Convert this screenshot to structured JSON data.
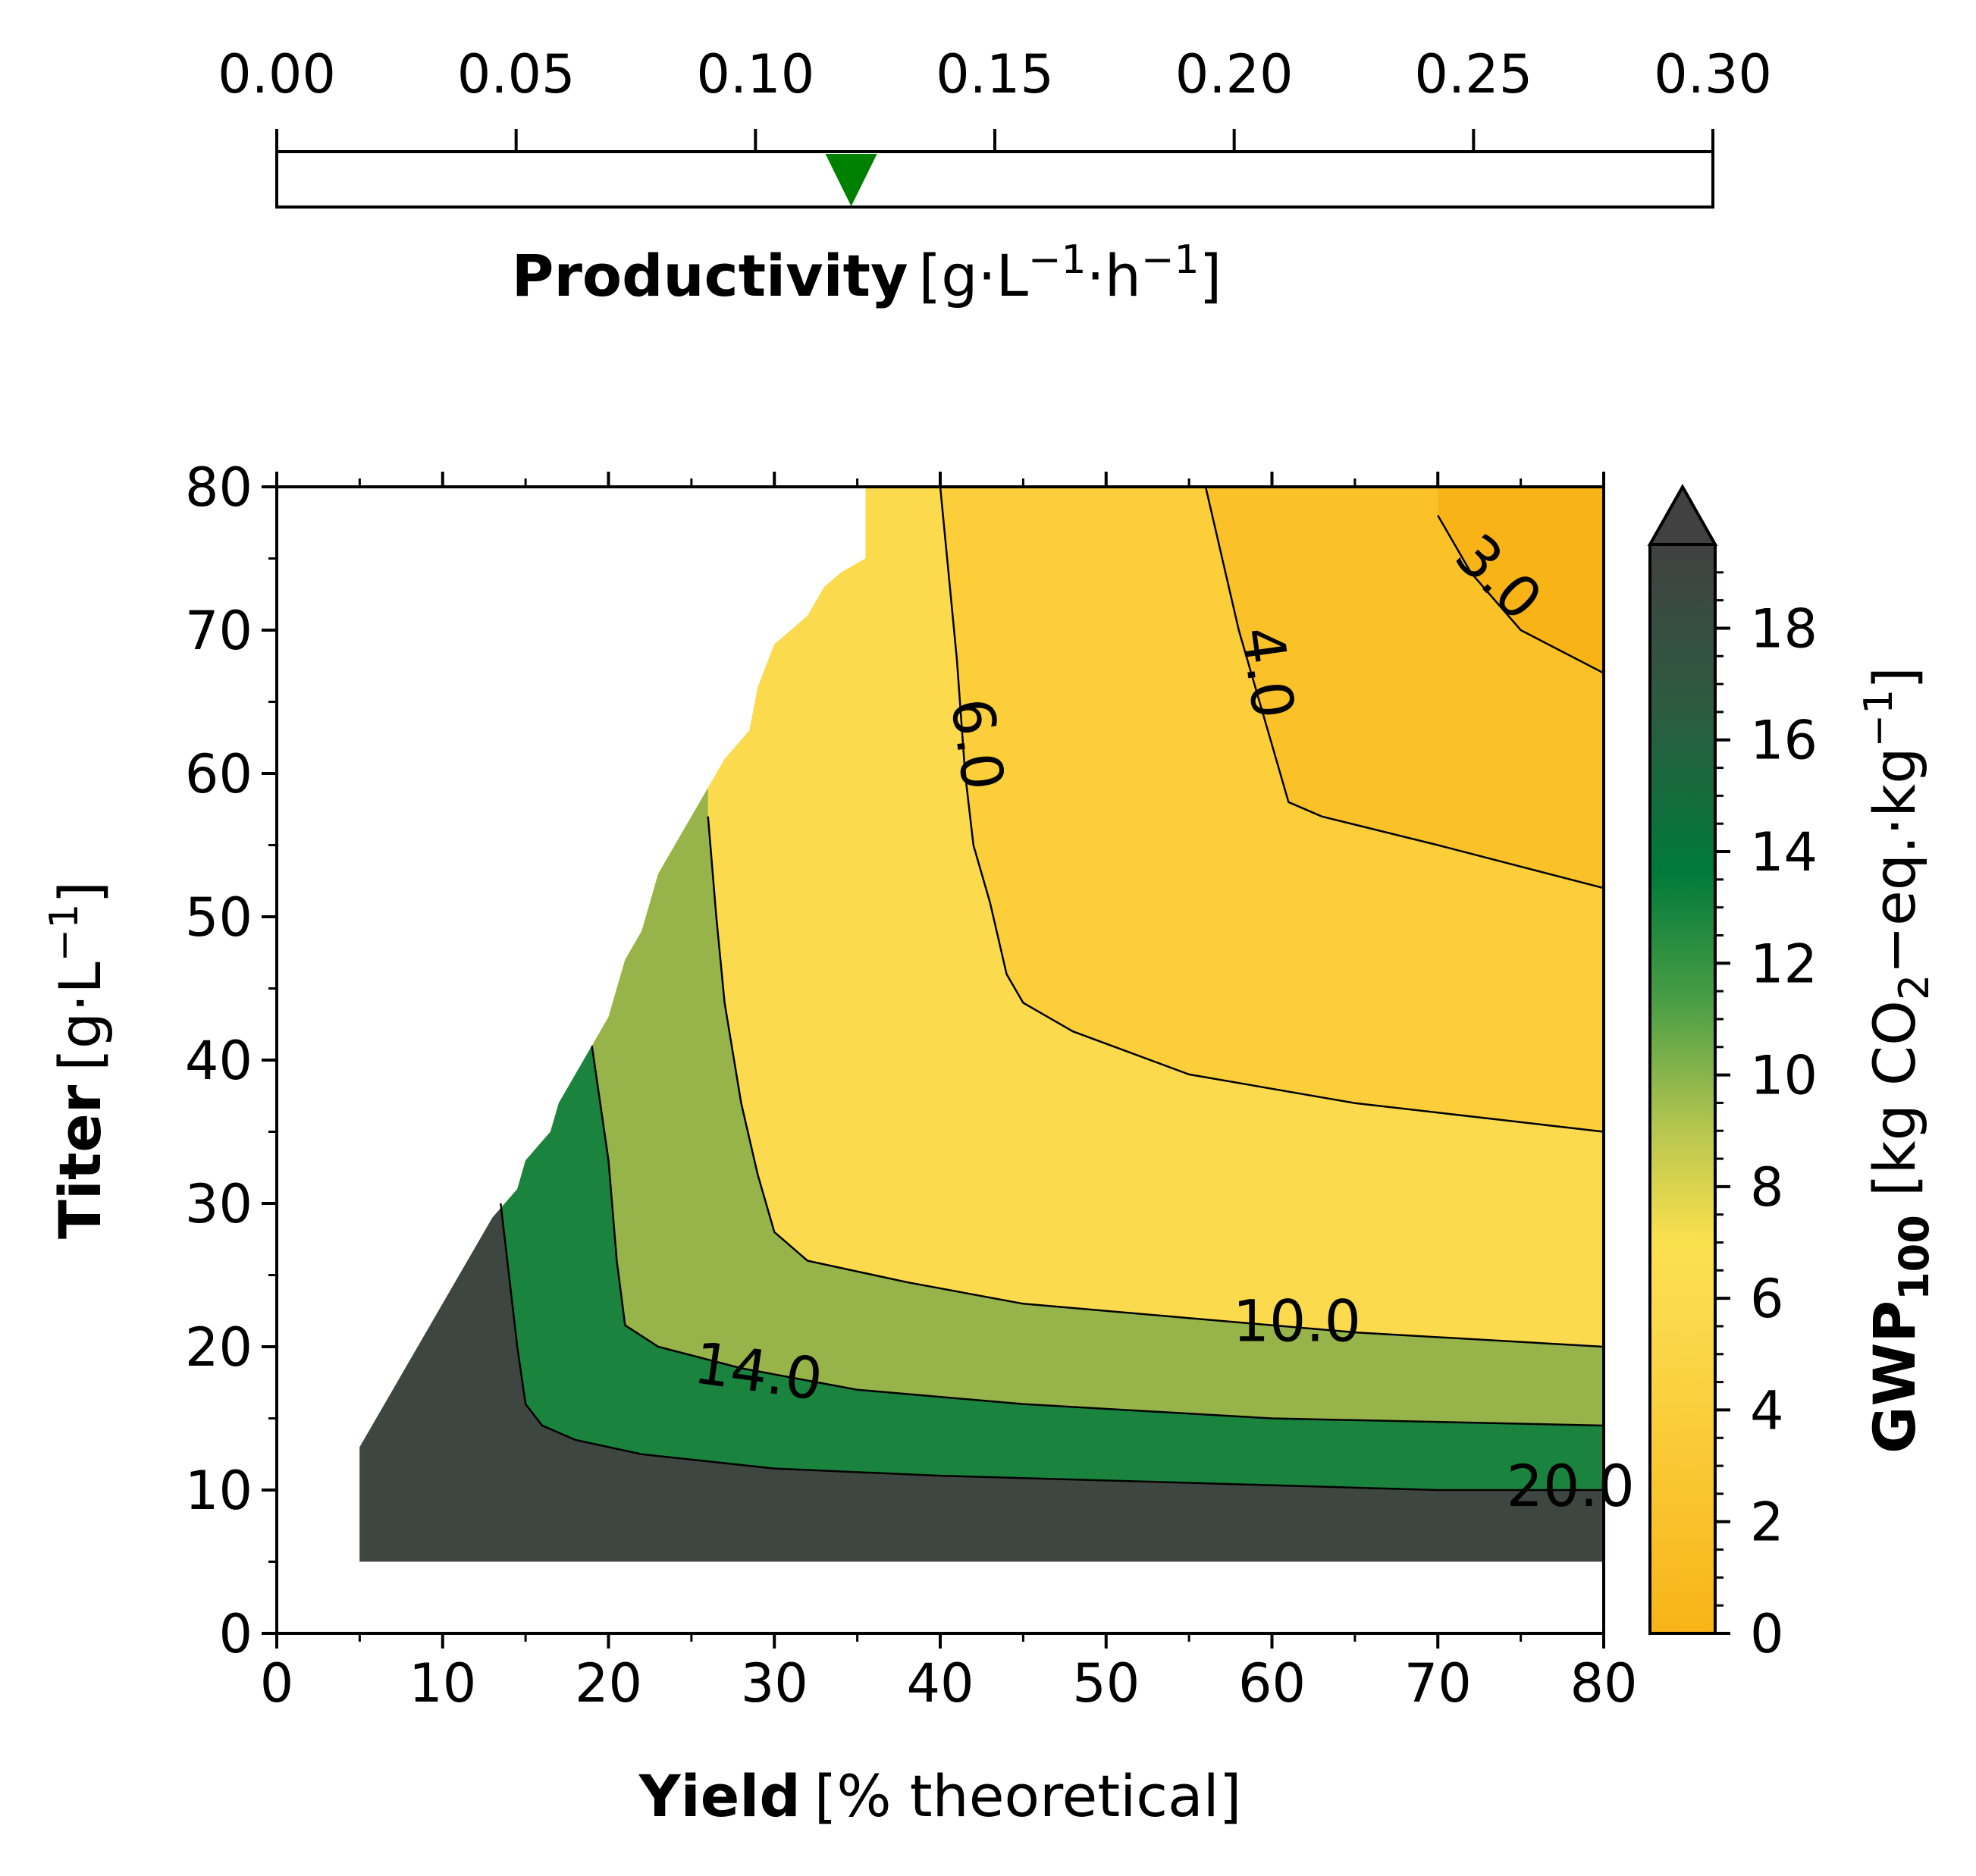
{
  "productivity_bar": {
    "label_bold": "Productivity",
    "label_unit": "[g·L",
    "label_sup1": "−1",
    "label_mid": "·h",
    "label_sup2": "−1",
    "label_close": "]",
    "ticks": [
      "0.00",
      "0.05",
      "0.10",
      "0.15",
      "0.20",
      "0.25",
      "0.30"
    ],
    "range": [
      0.0,
      0.3
    ],
    "marker_value": 0.12,
    "marker_color": "#008000"
  },
  "colorbar": {
    "label_bold": "GWP",
    "label_sub": "100",
    "label_unit": " [kg CO",
    "label_sub2": "2",
    "label_unit2": "−eq.·kg",
    "label_sup": "−1",
    "label_close": "]",
    "ticks": [
      "0",
      "2",
      "4",
      "6",
      "8",
      "10",
      "12",
      "14",
      "16",
      "18"
    ],
    "range": [
      0,
      19.5
    ],
    "extend": "max",
    "colors": {
      "low": "#f8b417",
      "mid": "#fbdc4f",
      "green": "#007a3a",
      "dark": "#414141"
    }
  },
  "chart_data": {
    "type": "contour",
    "xlabel_bold": "Yield",
    "xlabel_rest": "[% theoretical]",
    "ylabel_bold": "Titer",
    "ylabel_unit": "[g·L",
    "ylabel_sup": "−1",
    "ylabel_close": "]",
    "xlim": [
      0,
      80
    ],
    "ylim": [
      0,
      80
    ],
    "x_ticks": [
      "0",
      "10",
      "20",
      "30",
      "40",
      "50",
      "60",
      "70",
      "80"
    ],
    "y_ticks": [
      "0",
      "10",
      "20",
      "30",
      "40",
      "50",
      "60",
      "70",
      "80"
    ],
    "contour_levels": [
      3.0,
      4.0,
      6.0,
      10.0,
      14.0,
      20.0
    ],
    "contour_labels": [
      "3.0",
      "4.0",
      "6.0",
      "10.0",
      "14.0",
      "20.0"
    ],
    "feasible_region_boundary": [
      [
        5,
        5
      ],
      [
        80,
        5
      ],
      [
        80,
        80
      ],
      [
        35.5,
        80
      ],
      [
        35.5,
        75
      ],
      [
        34,
        74
      ],
      [
        33,
        73
      ],
      [
        32,
        71
      ],
      [
        30,
        69
      ],
      [
        29,
        66
      ],
      [
        28.5,
        63
      ],
      [
        27,
        61
      ],
      [
        26,
        59
      ],
      [
        25,
        57
      ],
      [
        24,
        55
      ],
      [
        23,
        53
      ],
      [
        22.5,
        51
      ],
      [
        22,
        49
      ],
      [
        21,
        47
      ],
      [
        20.5,
        45
      ],
      [
        20,
        43
      ],
      [
        19,
        41
      ],
      [
        18,
        39
      ],
      [
        17,
        37
      ],
      [
        16.5,
        35
      ],
      [
        15,
        33
      ],
      [
        14.5,
        31
      ],
      [
        13,
        29
      ],
      [
        12,
        27
      ],
      [
        11,
        25
      ],
      [
        10,
        23
      ],
      [
        9,
        21
      ],
      [
        8,
        19
      ],
      [
        7,
        17
      ],
      [
        6,
        15
      ],
      [
        5,
        13
      ],
      [
        5,
        5
      ]
    ],
    "contours": [
      {
        "level": 20.0,
        "points": [
          [
            13.5,
            30
          ],
          [
            14,
            25
          ],
          [
            14.5,
            20
          ],
          [
            15,
            16
          ],
          [
            16,
            14.5
          ],
          [
            18,
            13.5
          ],
          [
            22,
            12.5
          ],
          [
            30,
            11.5
          ],
          [
            40,
            11
          ],
          [
            55,
            10.5
          ],
          [
            70,
            10
          ],
          [
            80,
            10
          ]
        ]
      },
      {
        "level": 14.0,
        "points": [
          [
            19,
            41
          ],
          [
            19.5,
            37
          ],
          [
            20,
            33
          ],
          [
            20.5,
            26
          ],
          [
            21,
            21.5
          ],
          [
            23,
            20
          ],
          [
            28,
            18.5
          ],
          [
            35,
            17
          ],
          [
            45,
            16
          ],
          [
            60,
            15
          ],
          [
            80,
            14.5
          ]
        ]
      },
      {
        "level": 10.0,
        "points": [
          [
            26,
            57
          ],
          [
            26.5,
            50
          ],
          [
            27,
            44
          ],
          [
            28,
            37
          ],
          [
            29,
            32
          ],
          [
            30,
            28
          ],
          [
            32,
            26
          ],
          [
            38,
            24.5
          ],
          [
            45,
            23
          ],
          [
            55,
            22
          ],
          [
            65,
            21
          ],
          [
            80,
            20
          ]
        ]
      },
      {
        "level": 6.0,
        "points": [
          [
            40,
            80
          ],
          [
            40.5,
            74
          ],
          [
            41,
            68
          ],
          [
            41.5,
            60
          ],
          [
            42,
            55
          ],
          [
            43,
            51
          ],
          [
            44,
            46
          ],
          [
            45,
            44
          ],
          [
            48,
            42
          ],
          [
            55,
            39
          ],
          [
            65,
            37
          ],
          [
            80,
            35
          ]
        ]
      },
      {
        "level": 4.0,
        "points": [
          [
            56,
            80
          ],
          [
            57,
            75
          ],
          [
            58,
            70
          ],
          [
            59,
            66
          ],
          [
            60,
            62
          ],
          [
            61,
            58
          ],
          [
            63,
            57
          ],
          [
            70,
            55
          ],
          [
            80,
            52
          ]
        ]
      },
      {
        "level": 3.0,
        "points": [
          [
            70,
            78
          ],
          [
            72,
            74
          ],
          [
            75,
            70
          ],
          [
            80,
            67
          ]
        ]
      }
    ]
  }
}
